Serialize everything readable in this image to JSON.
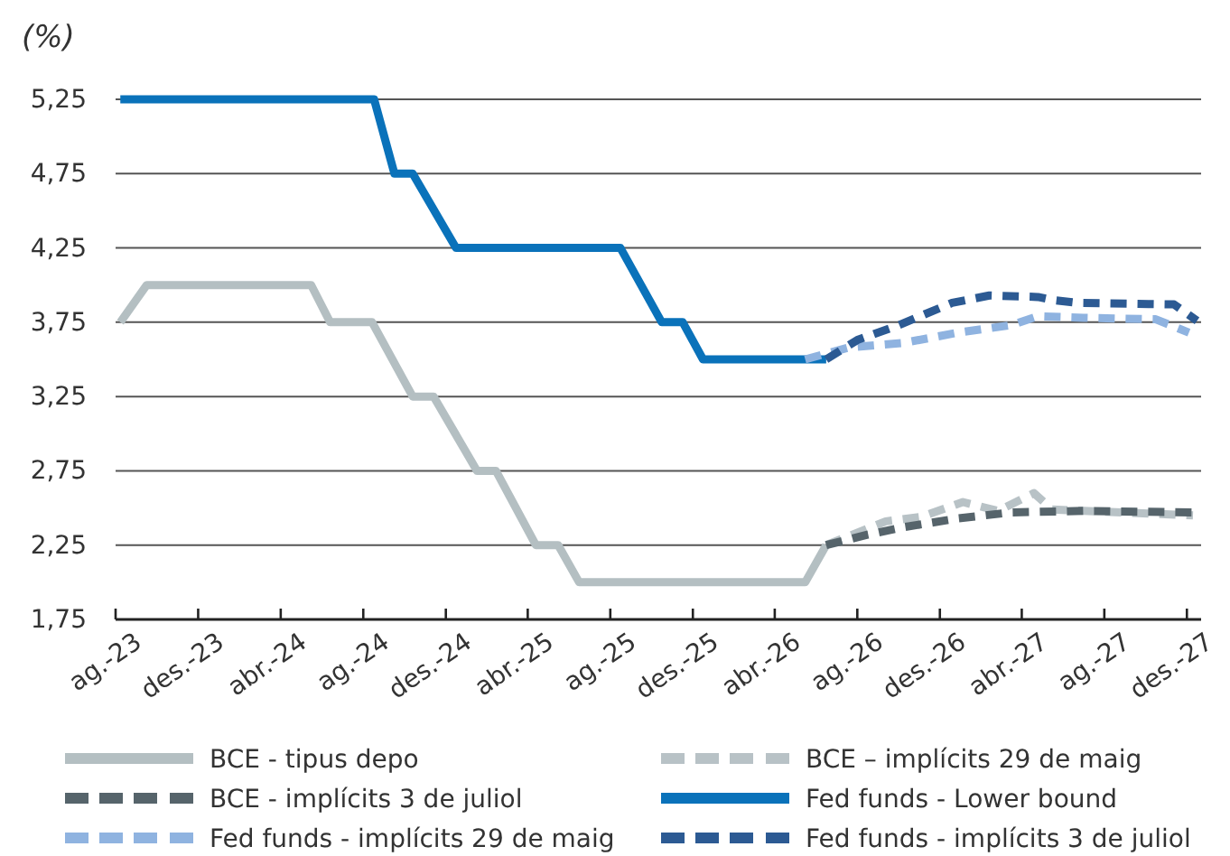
{
  "chart_data": {
    "type": "line",
    "ylabel": "(%)",
    "xlim": [
      "2023-08-01",
      "2027-12-22"
    ],
    "xticks": [
      {
        "value": "2023-08-01",
        "label": "ag.-23"
      },
      {
        "value": "2023-12-01",
        "label": "des.-23"
      },
      {
        "value": "2024-04-01",
        "label": "abr.-24"
      },
      {
        "value": "2024-08-01",
        "label": "ag.-24"
      },
      {
        "value": "2024-12-01",
        "label": "des.-24"
      },
      {
        "value": "2025-04-01",
        "label": "abr.-25"
      },
      {
        "value": "2025-08-01",
        "label": "ag.-25"
      },
      {
        "value": "2025-12-01",
        "label": "des.-25"
      },
      {
        "value": "2026-04-01",
        "label": "abr.-26"
      },
      {
        "value": "2026-08-01",
        "label": "ag.-26"
      },
      {
        "value": "2026-12-01",
        "label": "des.-26"
      },
      {
        "value": "2027-04-01",
        "label": "abr.-27"
      },
      {
        "value": "2027-08-01",
        "label": "ag.-27"
      },
      {
        "value": "2027-12-01",
        "label": "des.-27"
      }
    ],
    "ylim": [
      1.75,
      5.25
    ],
    "yticks": [
      {
        "value": 1.75,
        "label": "1,75"
      },
      {
        "value": 2.25,
        "label": "2,25"
      },
      {
        "value": 2.75,
        "label": "2,75"
      },
      {
        "value": 3.25,
        "label": "3,25"
      },
      {
        "value": 3.75,
        "label": "3,75"
      },
      {
        "value": 4.25,
        "label": "4,25"
      },
      {
        "value": 4.75,
        "label": "4,75"
      },
      {
        "value": 5.25,
        "label": "5,25"
      }
    ],
    "grid": "y",
    "legend": "bottom",
    "marker": "none",
    "series": [
      {
        "name": "BCE - tipus depo",
        "color": "#b4bfc2",
        "line_style": "solid",
        "x": [
          "2023-08-08",
          "2023-09-16",
          "2024-05-16",
          "2024-06-13",
          "2024-08-14",
          "2024-10-13",
          "2024-11-13",
          "2025-01-16",
          "2025-02-13",
          "2025-04-13",
          "2025-05-16",
          "2025-06-16",
          "2026-05-16",
          "2026-06-16"
        ],
        "values": [
          3.75,
          4.0,
          4.0,
          3.75,
          3.75,
          3.25,
          3.25,
          2.75,
          2.75,
          2.25,
          2.25,
          2.0,
          2.0,
          2.25
        ]
      },
      {
        "name": "BCE – implícits 29 de maig",
        "color": "#b8c2c6",
        "line_style": "dashed",
        "x": [
          "2026-06-16",
          "2026-09-12",
          "2026-11-03",
          "2027-01-04",
          "2027-02-25",
          "2027-04-19",
          "2027-05-16",
          "2027-12-10"
        ],
        "values": [
          2.25,
          2.41,
          2.44,
          2.54,
          2.48,
          2.6,
          2.49,
          2.45
        ]
      },
      {
        "name": "BCE - implícits 3 de juliol",
        "color": "#56646b",
        "line_style": "dashed",
        "x": [
          "2026-06-16",
          "2026-08-16",
          "2026-10-07",
          "2026-12-28",
          "2027-03-16",
          "2027-07-01",
          "2027-12-10"
        ],
        "values": [
          2.25,
          2.32,
          2.37,
          2.43,
          2.47,
          2.48,
          2.47
        ]
      },
      {
        "name": "Fed funds - Lower bound",
        "color": "#0a72ba",
        "line_style": "solid",
        "x": [
          "2023-08-08",
          "2024-08-17",
          "2024-09-16",
          "2024-10-13",
          "2024-12-16",
          "2025-08-16",
          "2025-10-16",
          "2025-11-16",
          "2025-12-16",
          "2026-06-16"
        ],
        "values": [
          5.25,
          5.25,
          4.75,
          4.75,
          4.25,
          4.25,
          3.75,
          3.75,
          3.5,
          3.5
        ]
      },
      {
        "name": "Fed funds - implícits 29 de maig",
        "color": "#8fb3e0",
        "line_style": "dashed",
        "x": [
          "2026-05-16",
          "2026-07-19",
          "2026-10-07",
          "2026-12-28",
          "2027-03-16",
          "2027-04-25",
          "2027-07-01",
          "2027-10-16",
          "2027-12-04"
        ],
        "values": [
          3.5,
          3.58,
          3.61,
          3.68,
          3.73,
          3.79,
          3.78,
          3.77,
          3.68
        ]
      },
      {
        "name": "Fed funds - implícits 3 de juliol",
        "color": "#2c5a93",
        "line_style": "dashed",
        "x": [
          "2026-06-16",
          "2026-08-01",
          "2026-10-01",
          "2026-12-19",
          "2027-02-12",
          "2027-04-25",
          "2027-05-16",
          "2027-06-24",
          "2027-11-12",
          "2027-12-16"
        ],
        "values": [
          3.5,
          3.63,
          3.73,
          3.88,
          3.93,
          3.92,
          3.9,
          3.88,
          3.87,
          3.76
        ]
      }
    ]
  }
}
